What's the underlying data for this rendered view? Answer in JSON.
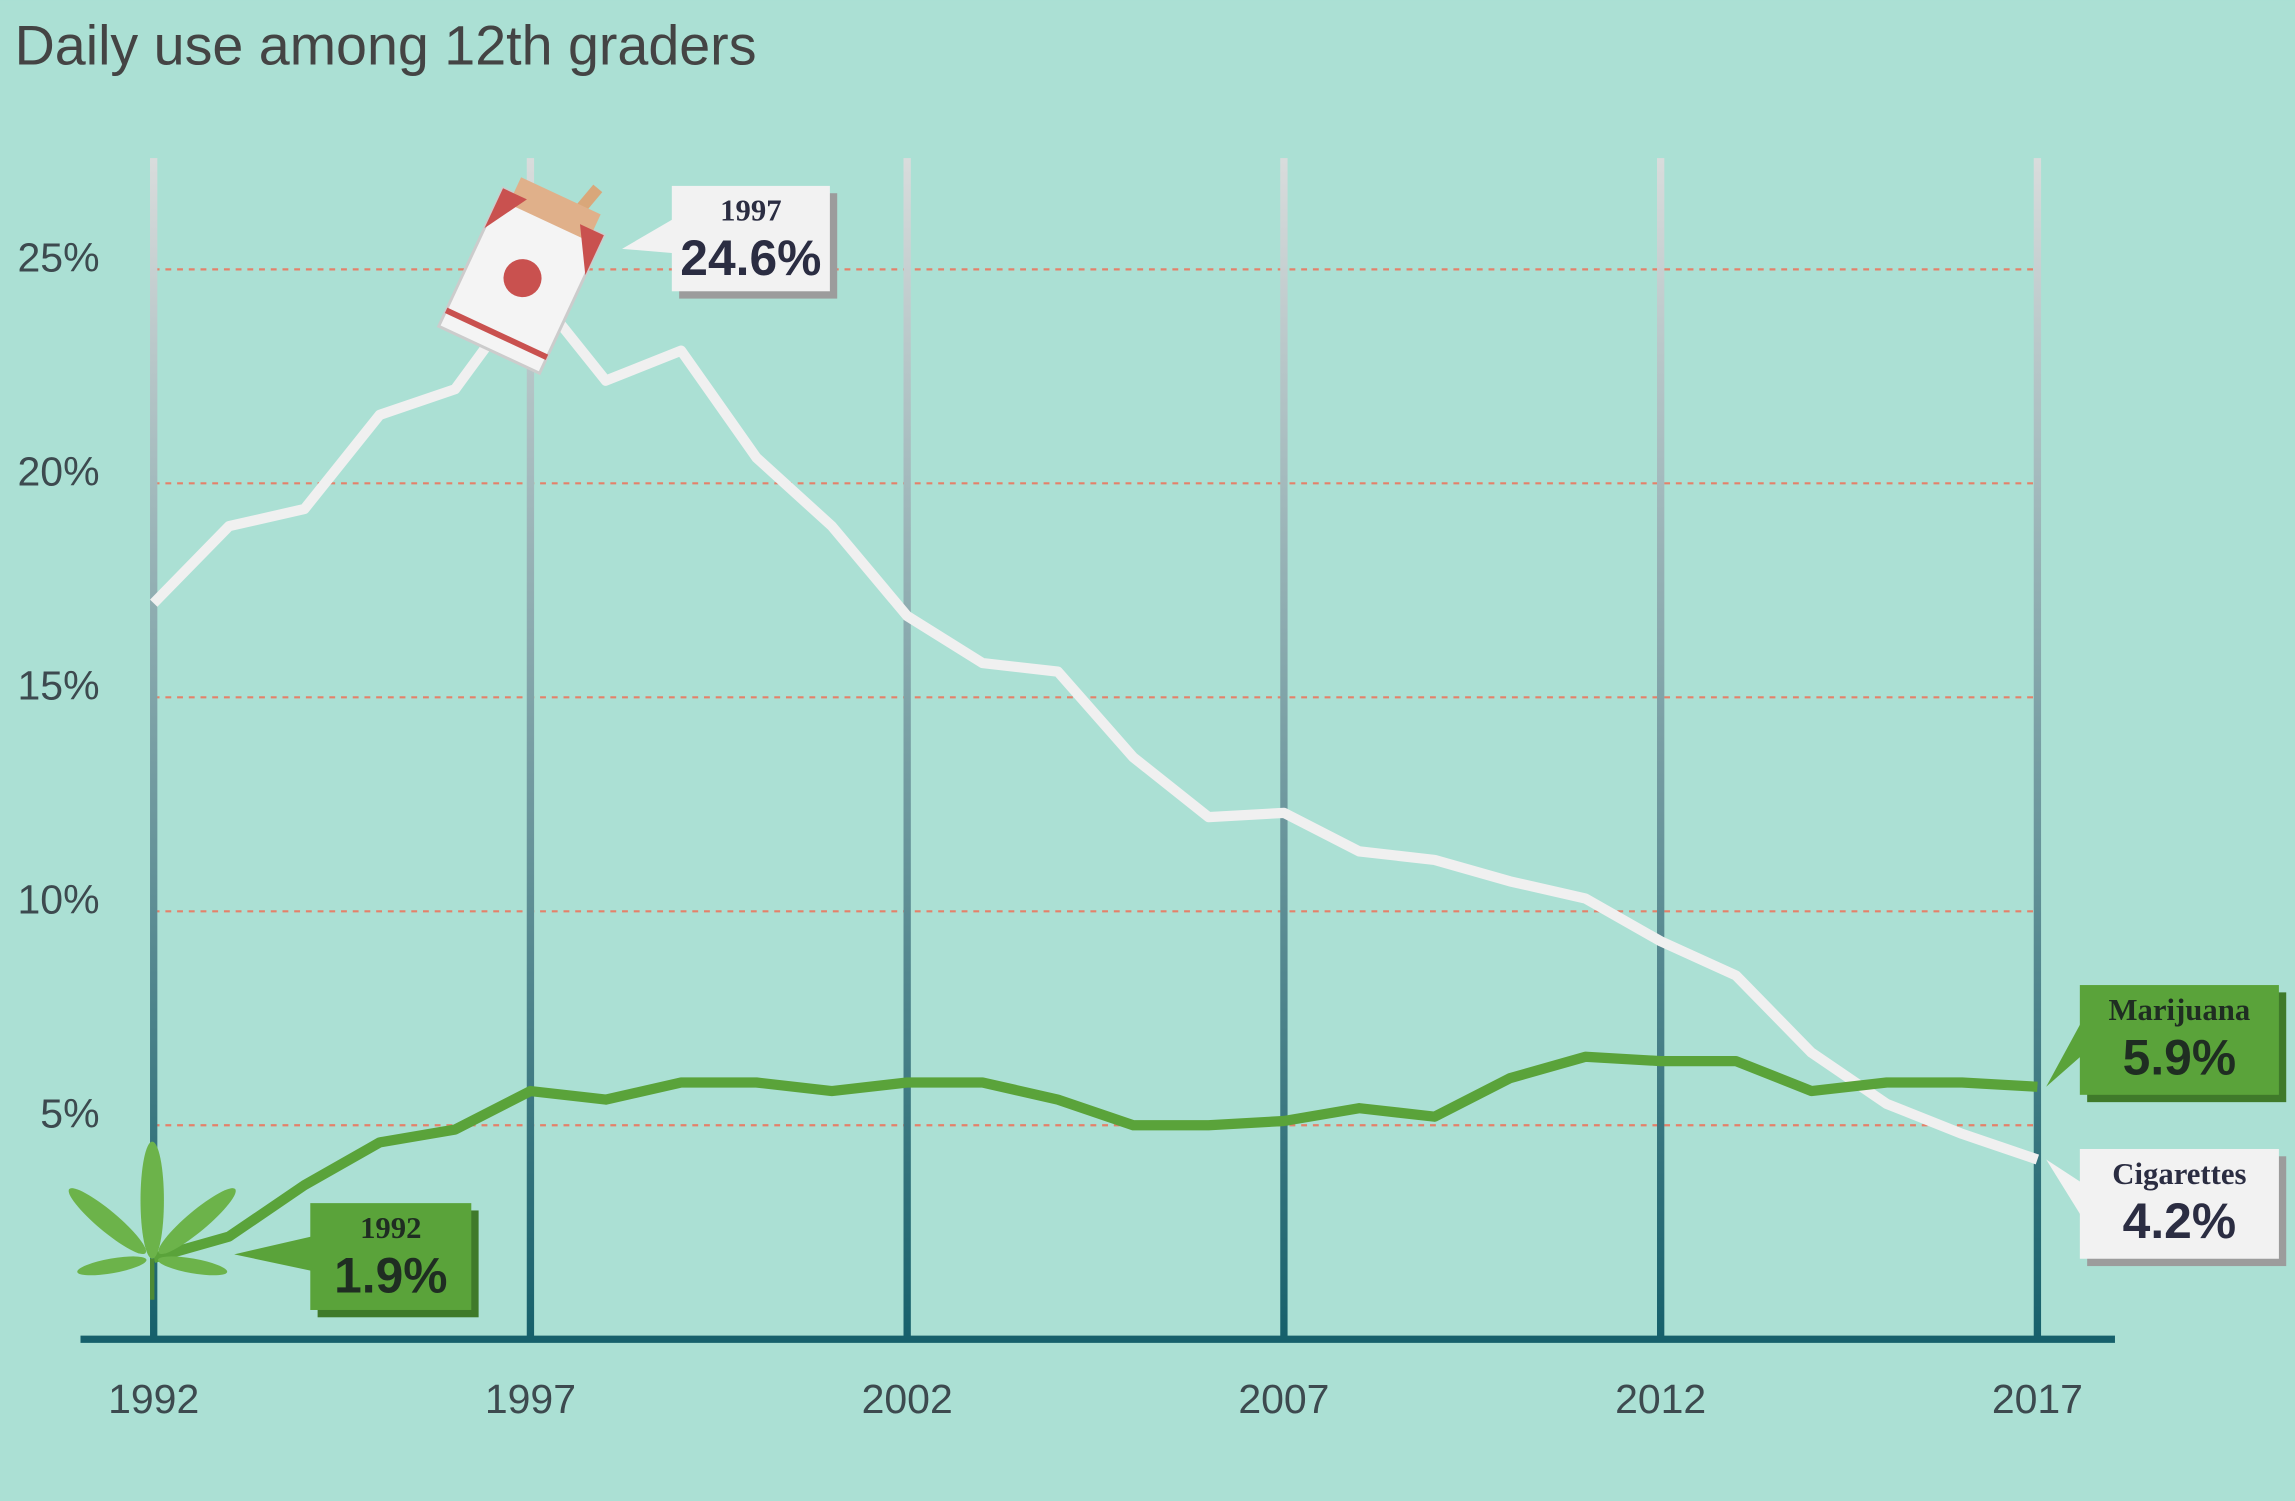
{
  "chart_data": {
    "type": "line",
    "title": "Daily use among 12th graders",
    "x": [
      1992,
      1993,
      1994,
      1995,
      1996,
      1997,
      1998,
      1999,
      2000,
      2001,
      2002,
      2003,
      2004,
      2005,
      2006,
      2007,
      2008,
      2009,
      2010,
      2011,
      2012,
      2013,
      2014,
      2015,
      2016,
      2017
    ],
    "xlim": [
      1992,
      2017
    ],
    "xticks": [
      1992,
      1997,
      2002,
      2007,
      2012,
      2017
    ],
    "ylim": [
      0,
      27.6
    ],
    "yticks": [
      {
        "value": 5,
        "label": "5%"
      },
      {
        "value": 10,
        "label": "10%"
      },
      {
        "value": 15,
        "label": "15%"
      },
      {
        "value": 20,
        "label": "20%"
      },
      {
        "value": 25,
        "label": "25%"
      }
    ],
    "grid": true,
    "series": [
      {
        "name": "Cigarettes",
        "color": "#f0f0f0",
        "values": [
          17.2,
          19.0,
          19.4,
          21.6,
          22.2,
          24.6,
          22.4,
          23.1,
          20.6,
          19.0,
          16.9,
          15.8,
          15.6,
          13.6,
          12.2,
          12.3,
          11.4,
          11.2,
          10.7,
          10.3,
          9.3,
          8.5,
          6.7,
          5.5,
          4.8,
          4.2
        ],
        "value_labels": [
          null,
          null,
          null,
          null,
          null,
          "24.6%",
          null,
          null,
          null,
          null,
          null,
          null,
          null,
          null,
          null,
          null,
          null,
          null,
          null,
          null,
          null,
          null,
          null,
          null,
          null,
          "4.2%"
        ]
      },
      {
        "name": "Marijuana",
        "color": "#5aa33a",
        "values": [
          1.9,
          2.4,
          3.6,
          4.6,
          4.9,
          5.8,
          5.6,
          6.0,
          6.0,
          5.8,
          6.0,
          6.0,
          5.6,
          5.0,
          5.0,
          5.1,
          5.4,
          5.2,
          6.1,
          6.6,
          6.5,
          6.5,
          5.8,
          6.0,
          6.0,
          5.9
        ],
        "value_labels": [
          "1.9%",
          null,
          null,
          null,
          null,
          null,
          null,
          null,
          null,
          null,
          null,
          null,
          null,
          null,
          null,
          null,
          null,
          null,
          null,
          null,
          null,
          null,
          null,
          null,
          null,
          "5.9%"
        ]
      }
    ]
  }
}
